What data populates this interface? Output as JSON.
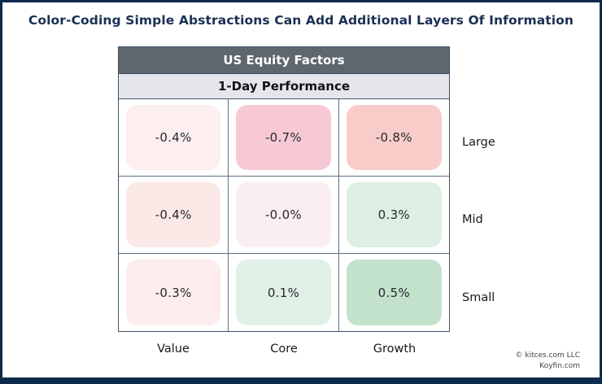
{
  "page": {
    "title": "Color-Coding Simple Abstractions Can Add Additional Layers Of Information",
    "title_color": "#1b3055",
    "frame_border_color": "#0d2b4b",
    "background": "#ffffff"
  },
  "table": {
    "header_label": "US Equity Factors",
    "header_bg": "#5e666e",
    "header_text_color": "#ffffff",
    "subheader_label": "1-Day Performance",
    "subheader_bg": "#e4e6e9",
    "subheader_text_color": "#111317",
    "grid_line_color": "#5a7184"
  },
  "chart_data": {
    "type": "heatmap",
    "title": "US Equity Factors",
    "subtitle": "1-Day Performance",
    "columns": [
      "Value",
      "Core",
      "Growth"
    ],
    "rows": [
      "Large",
      "Mid",
      "Small"
    ],
    "values": [
      [
        -0.4,
        -0.7,
        -0.8
      ],
      [
        -0.4,
        0.0,
        0.3
      ],
      [
        -0.3,
        0.1,
        0.5
      ]
    ],
    "cells": [
      [
        {
          "label": "-0.4%",
          "color": "#fdeef0"
        },
        {
          "label": "-0.7%",
          "color": "#f7c9d5"
        },
        {
          "label": "-0.8%",
          "color": "#f8ccc8"
        }
      ],
      [
        {
          "label": "-0.4%",
          "color": "#fbe9e7"
        },
        {
          "label": "-0.0%",
          "color": "#faeef3"
        },
        {
          "label": "0.3%",
          "color": "#ddeee3"
        }
      ],
      [
        {
          "label": "-0.3%",
          "color": "#fdedec"
        },
        {
          "label": "0.1%",
          "color": "#e1f0e6"
        },
        {
          "label": "0.5%",
          "color": "#c3e2cc"
        }
      ]
    ],
    "color_scale": "red = negative performance, green = positive performance",
    "legend_position": "none",
    "grid": true
  },
  "footer": {
    "line1": "© kitces.com LLC",
    "line2": "Koyfin.com"
  }
}
